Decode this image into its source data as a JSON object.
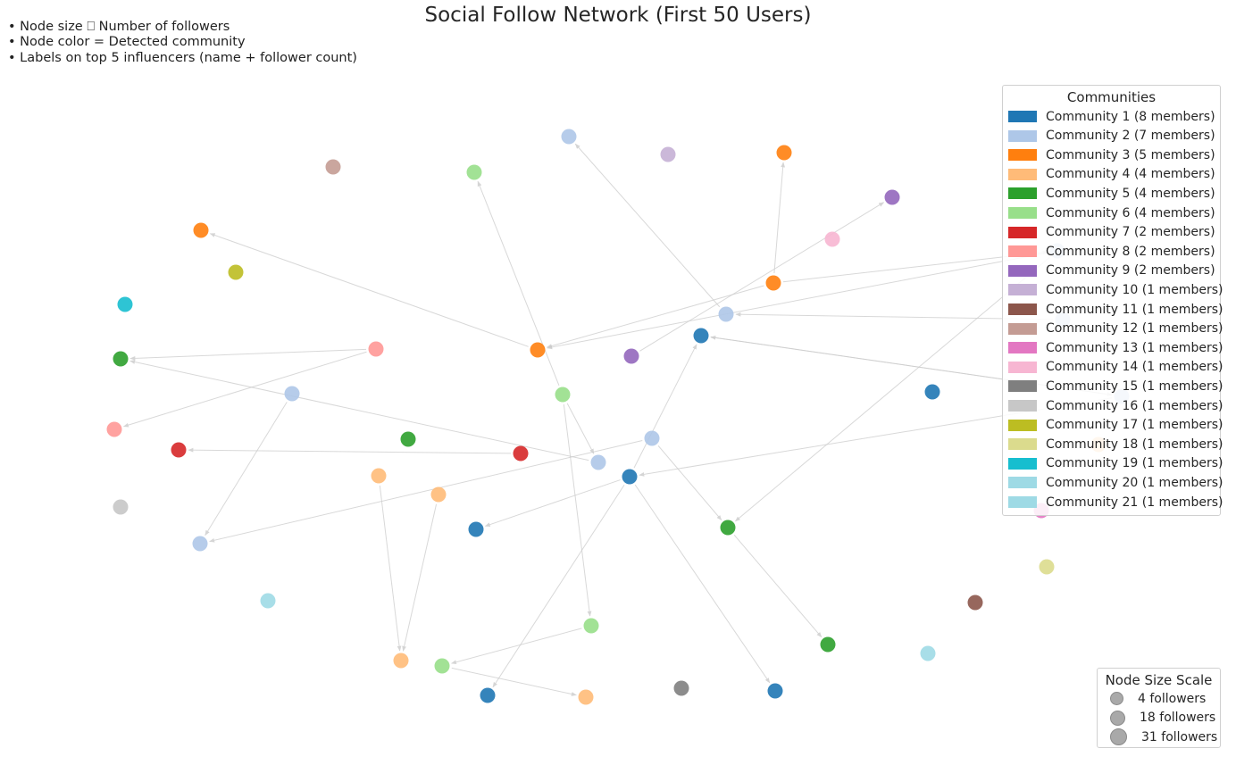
{
  "title": "Social Follow Network (First 50 Users)",
  "notes": [
    "• Node size ⎕ Number of followers",
    "• Node color = Detected community",
    "• Labels on top 5 influencers (name + follower count)"
  ],
  "legend_communities": {
    "title": "Communities",
    "items": [
      {
        "label": "Community 1 (8 members)",
        "color": "#1f77b4"
      },
      {
        "label": "Community 2 (7 members)",
        "color": "#aec7e8"
      },
      {
        "label": "Community 3 (5 members)",
        "color": "#ff7f0e"
      },
      {
        "label": "Community 4 (4 members)",
        "color": "#ffbb78"
      },
      {
        "label": "Community 5 (4 members)",
        "color": "#2ca02c"
      },
      {
        "label": "Community 6 (4 members)",
        "color": "#98df8a"
      },
      {
        "label": "Community 7 (2 members)",
        "color": "#d62728"
      },
      {
        "label": "Community 8 (2 members)",
        "color": "#ff9896"
      },
      {
        "label": "Community 9 (2 members)",
        "color": "#9467bd"
      },
      {
        "label": "Community 10 (1 members)",
        "color": "#c5b0d5"
      },
      {
        "label": "Community 11 (1 members)",
        "color": "#8c564b"
      },
      {
        "label": "Community 12 (1 members)",
        "color": "#c49c94"
      },
      {
        "label": "Community 13 (1 members)",
        "color": "#e377c2"
      },
      {
        "label": "Community 14 (1 members)",
        "color": "#f7b6d2"
      },
      {
        "label": "Community 15 (1 members)",
        "color": "#7f7f7f"
      },
      {
        "label": "Community 16 (1 members)",
        "color": "#c7c7c7"
      },
      {
        "label": "Community 17 (1 members)",
        "color": "#bcbd22"
      },
      {
        "label": "Community 18 (1 members)",
        "color": "#dbdb8d"
      },
      {
        "label": "Community 19 (1 members)",
        "color": "#17becf"
      },
      {
        "label": "Community 20 (1 members)",
        "color": "#9edae5"
      },
      {
        "label": "Community 21 (1 members)",
        "color": "#9edae5"
      }
    ]
  },
  "legend_size": {
    "title": "Node Size Scale",
    "items": [
      {
        "label": "4 followers",
        "followers": 4
      },
      {
        "label": "18 followers",
        "followers": 18
      },
      {
        "label": "31 followers",
        "followers": 31
      }
    ]
  },
  "edge_color": "#cccccc"
}
